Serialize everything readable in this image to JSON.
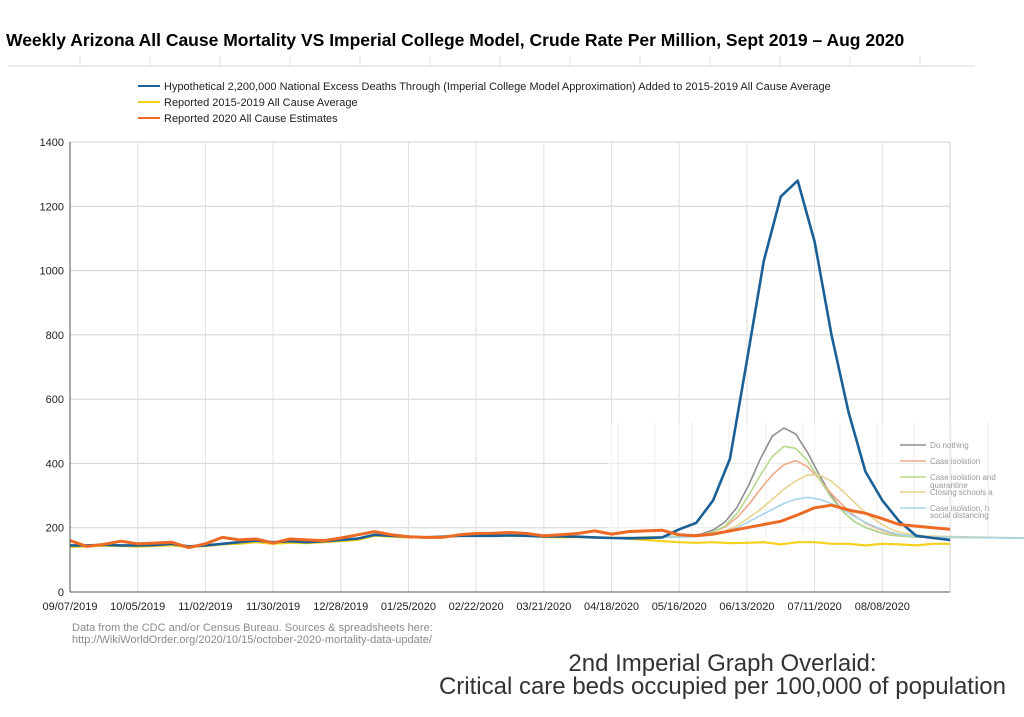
{
  "chart_data": {
    "type": "line",
    "title": "Weekly Arizona All Cause Mortality VS Imperial College Model, Crude Rate Per Million, Sept 2019 – Aug 2020",
    "ylim": [
      0,
      1400
    ],
    "yticks": [
      0,
      200,
      400,
      600,
      800,
      1000,
      1200,
      1400
    ],
    "xtick_labels": [
      "09/07/2019",
      "10/05/2019",
      "11/02/2019",
      "11/30/2019",
      "12/28/2019",
      "01/25/2020",
      "02/22/2020",
      "03/21/2020",
      "04/18/2020",
      "05/16/2020",
      "06/13/2020",
      "07/11/2020",
      "08/08/2020"
    ],
    "grid": true,
    "legend_position": "top",
    "series": [
      {
        "name": "Hypothetical 2,200,000 National Excess Deaths Through (Imperial College Model Approximation) Added to 2015-2019 All Cause Average",
        "color": "#1a5f96",
        "values": [
          145,
          145,
          147,
          145,
          145,
          146,
          150,
          142,
          145,
          150,
          155,
          160,
          155,
          158,
          155,
          158,
          162,
          166,
          178,
          175,
          172,
          170,
          172,
          175,
          175,
          175,
          176,
          175,
          173,
          173,
          172,
          170,
          168,
          167,
          168,
          170,
          195,
          215,
          285,
          415,
          720,
          1030,
          1230,
          1280,
          1090,
          800,
          560,
          375,
          285,
          220,
          175,
          168,
          162
        ]
      },
      {
        "name": "Reported 2015-2019 All Cause Average",
        "color": "#f3d11c",
        "values": [
          140,
          142,
          144,
          143,
          141,
          143,
          145,
          140,
          143,
          148,
          150,
          155,
          150,
          153,
          152,
          155,
          158,
          162,
          175,
          172,
          170,
          170,
          172,
          175,
          178,
          178,
          175,
          176,
          171,
          170,
          171,
          170,
          169,
          166,
          162,
          158,
          155,
          153,
          155,
          152,
          153,
          155,
          148,
          155,
          155,
          150,
          150,
          145,
          150,
          148,
          145,
          150,
          150
        ]
      },
      {
        "name": "Reported 2020 All Cause Estimates",
        "color": "#ed6a25",
        "values": [
          160,
          142,
          148,
          158,
          150,
          152,
          155,
          138,
          150,
          170,
          162,
          165,
          152,
          165,
          162,
          160,
          168,
          178,
          188,
          178,
          172,
          170,
          170,
          178,
          182,
          183,
          185,
          182,
          175,
          178,
          182,
          190,
          180,
          188,
          190,
          192,
          178,
          175,
          180,
          190,
          200,
          210,
          220,
          240,
          262,
          270,
          255,
          245,
          228,
          210,
          205,
          200,
          195
        ]
      }
    ],
    "overlay": {
      "caption_line1": "2nd Imperial Graph Overlaid:",
      "caption_line2": "Critical care beds occupied per 100,000 of population",
      "legend": [
        "Do nothing",
        "Case isolation",
        "Case isolation and",
        "quarantine",
        "Closing schools a",
        "Case isolation, h",
        "social distancing"
      ],
      "series": [
        {
          "name": "Do nothing",
          "color": "#8e8e8e",
          "values": [
            2,
            4,
            8,
            16,
            30,
            52,
            78,
            100,
            108,
            102,
            84,
            62,
            42,
            26,
            16,
            10,
            6,
            3,
            2,
            1,
            1
          ]
        },
        {
          "name": "Case isolation",
          "color": "#f0a98a",
          "values": [
            2,
            3,
            6,
            11,
            20,
            33,
            48,
            62,
            72,
            76,
            70,
            58,
            44,
            32,
            22,
            14,
            9,
            5,
            3,
            2,
            1
          ]
        },
        {
          "name": "Case isolation and quarantine",
          "color": "#b7d98a",
          "values": [
            2,
            3,
            6,
            12,
            24,
            42,
            62,
            80,
            90,
            88,
            76,
            58,
            40,
            26,
            16,
            10,
            6,
            3,
            2,
            1,
            1
          ]
        },
        {
          "name": "Closing schools a",
          "color": "#e8d28e",
          "values": [
            1,
            2,
            4,
            7,
            12,
            20,
            28,
            38,
            48,
            56,
            62,
            62,
            56,
            46,
            35,
            24,
            16,
            9,
            5,
            3,
            2
          ]
        },
        {
          "name": "Case isolation, h social distancing",
          "color": "#a5d5ee",
          "values": [
            1,
            2,
            3,
            6,
            10,
            16,
            22,
            28,
            34,
            38,
            40,
            38,
            34,
            28,
            21,
            15,
            10,
            6,
            3,
            2,
            1
          ]
        }
      ]
    }
  },
  "footnote": {
    "line1": "Data from the CDC and/or Census Bureau. Sources & spreadsheets here:",
    "line2": "http://WikiWorldOrder.org/2020/10/15/october-2020-mortality-data-update/"
  }
}
